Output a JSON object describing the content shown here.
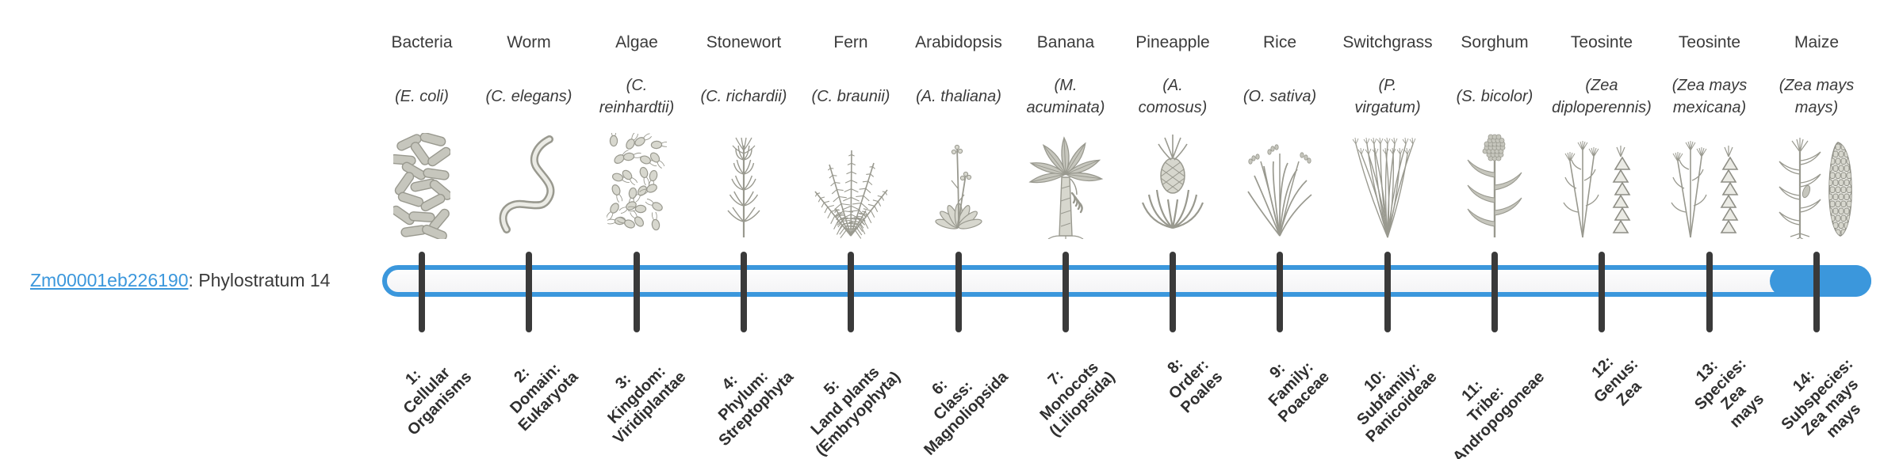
{
  "gene": {
    "id": "Zm00001eb226190",
    "suffix": ": Phylostratum 14",
    "phylostratum": 14
  },
  "timeline": {
    "bar_outline_color": "#3b97dc",
    "highlight_color": "#3b97dc",
    "tick_color": "#3a3a3a",
    "highlighted_stratum": 14,
    "total_strata": 14
  },
  "colors": {
    "link_blue": "#3b97dc",
    "text_dark": "#3b3b3b",
    "background": "#ffffff",
    "illustration_gray": "#99998f"
  },
  "organisms": [
    {
      "common": "Bacteria",
      "scientific": "(E. coli)",
      "icon": "bacteria-icon",
      "stratum_label": "1:\nCellular\nOrganisms"
    },
    {
      "common": "Worm",
      "scientific": "(C. elegans)",
      "icon": "worm-icon",
      "stratum_label": "2:\nDomain:\nEukaryota"
    },
    {
      "common": "Algae",
      "scientific": "(C.\nreinhardtii)",
      "icon": "algae-icon",
      "stratum_label": "3:\nKingdom:\nViridiplantae"
    },
    {
      "common": "Stonewort",
      "scientific": "(C. richardii)",
      "icon": "stonewort-icon",
      "stratum_label": "4:\nPhylum:\nStreptophyta"
    },
    {
      "common": "Fern",
      "scientific": "(C. braunii)",
      "icon": "fern-icon",
      "stratum_label": "5:\nLand plants\n(Embryophyta)"
    },
    {
      "common": "Arabidopsis",
      "scientific": "(A. thaliana)",
      "icon": "arabidopsis-icon",
      "stratum_label": "6:\nClass:\nMagnoliopsida"
    },
    {
      "common": "Banana",
      "scientific": "(M.\nacuminata)",
      "icon": "banana-icon",
      "stratum_label": "7:\nMonocots\n(Liliopsida)"
    },
    {
      "common": "Pineapple",
      "scientific": "(A.\ncomosus)",
      "icon": "pineapple-icon",
      "stratum_label": "8:\nOrder:\nPoales"
    },
    {
      "common": "Rice",
      "scientific": "(O. sativa)",
      "icon": "rice-icon",
      "stratum_label": "9:\nFamily:\nPoaceae"
    },
    {
      "common": "Switchgrass",
      "scientific": "(P.\nvirgatum)",
      "icon": "switchgrass-icon",
      "stratum_label": "10:\nSubfamily:\nPanicoideae"
    },
    {
      "common": "Sorghum",
      "scientific": "(S. bicolor)",
      "icon": "sorghum-icon",
      "stratum_label": "11:\nTribe:\nAndropogoneae"
    },
    {
      "common": "Teosinte",
      "scientific": "(Zea\ndiploperennis)",
      "icon": "teosinte-icon",
      "stratum_label": "12:\nGenus:\nZea"
    },
    {
      "common": "Teosinte",
      "scientific": "(Zea mays\nmexicana)",
      "icon": "teosinte-icon",
      "stratum_label": "13:\nSpecies:\nZea\nmays"
    },
    {
      "common": "Maize",
      "scientific": "(Zea mays\nmays)",
      "icon": "maize-icon",
      "stratum_label": "14:\nSubspecies:\nZea mays\nmays"
    }
  ]
}
